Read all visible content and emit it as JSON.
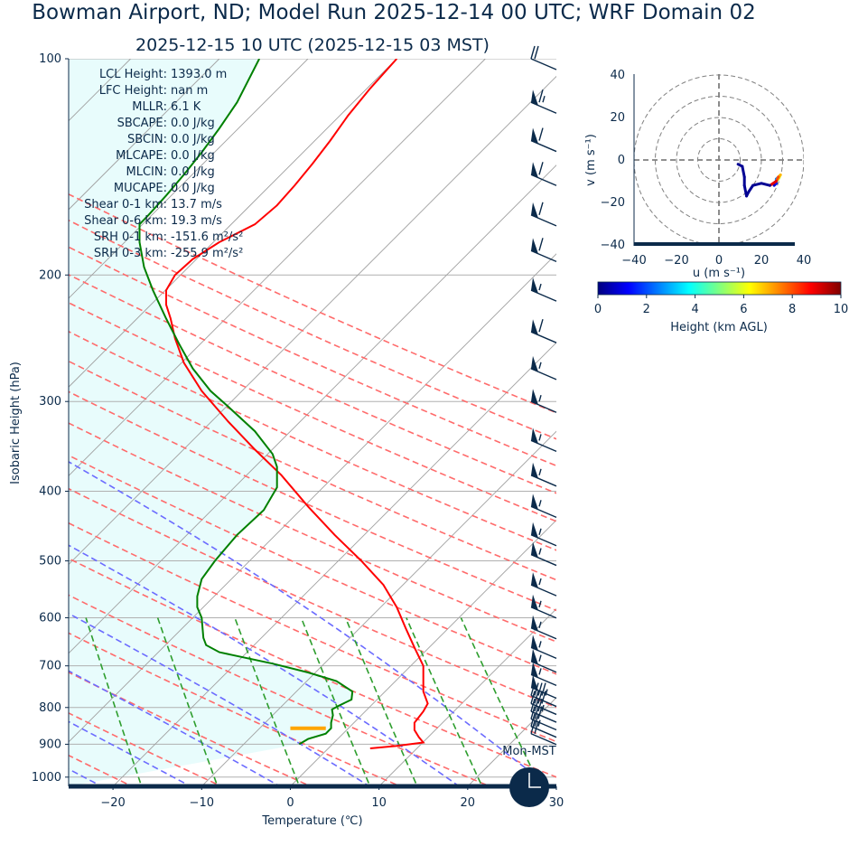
{
  "title": "Bowman Airport, ND; Model Run 2025-12-14 00 UTC; WRF Domain 02",
  "subtitle": "2025-12-15 10 UTC  (2025-12-15 03 MST)",
  "stats": [
    {
      "label": "LCL Height:",
      "value": "1393.0 m"
    },
    {
      "label": "LFC Height:",
      "value": "nan m"
    },
    {
      "label": "MLLR:",
      "value": "6.1 K"
    },
    {
      "label": "SBCAPE:",
      "value": "0.0 J/kg"
    },
    {
      "label": "SBCIN:",
      "value": "0.0 J/kg"
    },
    {
      "label": "MLCAPE:",
      "value": "0.0 J/kg"
    },
    {
      "label": "MLCIN:",
      "value": "0.0 J/kg"
    },
    {
      "label": "MUCAPE:",
      "value": "0.0 J/kg"
    },
    {
      "label": "Shear 0-1 km:",
      "value": "13.7 m/s"
    },
    {
      "label": "Shear 0-6 km:",
      "value": "19.3 m/s"
    },
    {
      "label": "SRH 0-1 km:",
      "value": "-151.6 m²/s²"
    },
    {
      "label": "SRH 0-3 km:",
      "value": "-255.9 m²/s²"
    }
  ],
  "clock_label": "Mon-MST",
  "colors": {
    "temperature": "#ff0000",
    "dewpoint": "#008000",
    "dry_adiabat": "#ff6b6b",
    "moist_adiabat": "#6b6bff",
    "mixing_ratio": "#2e9e2e",
    "isotherm": "#a0a0a0",
    "lcl_marker": "#ffa500",
    "cape_fill": "#e8fcfc",
    "barbs": "#0b2a4a",
    "navy": "#0b2a4a"
  },
  "chart_data": [
    {
      "type": "line",
      "title": "",
      "xlabel": "Temperature (℃)",
      "ylabel": "Isobaric Height (hPa)",
      "xlim": [
        -25,
        30
      ],
      "ylim": [
        1030,
        100
      ],
      "xticks": [
        -20,
        -10,
        0,
        10,
        20,
        30
      ],
      "yticks": [
        100,
        200,
        300,
        400,
        500,
        600,
        700,
        800,
        900,
        1000
      ],
      "skew_deg_per_log_p": 0,
      "series": [
        {
          "key": "temperature",
          "points": [
            [
              9.0,
              912
            ],
            [
              12.0,
              905
            ],
            [
              15.0,
              895
            ],
            [
              14.5,
              880
            ],
            [
              14.0,
              860
            ],
            [
              14.0,
              840
            ],
            [
              14.5,
              825
            ],
            [
              15.0,
              810
            ],
            [
              15.5,
              790
            ],
            [
              15.0,
              760
            ],
            [
              15.0,
              720
            ],
            [
              15.0,
              700
            ],
            [
              14.0,
              660
            ],
            [
              13.0,
              620
            ],
            [
              12.0,
              580
            ],
            [
              10.5,
              540
            ],
            [
              8.0,
              500
            ],
            [
              5.0,
              460
            ],
            [
              2.0,
              420
            ],
            [
              -1.0,
              380
            ],
            [
              -4.0,
              350
            ],
            [
              -7.0,
              320
            ],
            [
              -10.0,
              290
            ],
            [
              -12.0,
              265
            ],
            [
              -13.0,
              245
            ],
            [
              -13.5,
              230
            ],
            [
              -14.0,
              220
            ],
            [
              -14.0,
              210
            ],
            [
              -13.0,
              200
            ],
            [
              -11.0,
              190
            ],
            [
              -8.0,
              180
            ],
            [
              -4.0,
              170
            ],
            [
              -1.5,
              160
            ],
            [
              0.5,
              150
            ],
            [
              2.5,
              140
            ],
            [
              4.5,
              130
            ],
            [
              6.5,
              120
            ],
            [
              9.0,
              110
            ],
            [
              12.0,
              100
            ]
          ]
        },
        {
          "key": "dewpoint",
          "points": [
            [
              1.0,
              900
            ],
            [
              2.0,
              885
            ],
            [
              4.0,
              870
            ],
            [
              4.6,
              855
            ],
            [
              4.6,
              840
            ],
            [
              4.8,
              820
            ],
            [
              4.7,
              805
            ],
            [
              5.5,
              795
            ],
            [
              6.9,
              780
            ],
            [
              7.0,
              760
            ],
            [
              5.2,
              735
            ],
            [
              2.0,
              715
            ],
            [
              -2.0,
              695
            ],
            [
              -8.0,
              670
            ],
            [
              -9.5,
              655
            ],
            [
              -9.8,
              640
            ],
            [
              -10.0,
              600
            ],
            [
              -10.5,
              580
            ],
            [
              -10.5,
              560
            ],
            [
              -10.0,
              530
            ],
            [
              -8.5,
              500
            ],
            [
              -6.0,
              460
            ],
            [
              -3.0,
              425
            ],
            [
              -1.5,
              395
            ],
            [
              -1.5,
              370
            ],
            [
              -2.0,
              355
            ],
            [
              -4.0,
              330
            ],
            [
              -7.0,
              305
            ],
            [
              -9.0,
              290
            ],
            [
              -11.0,
              270
            ],
            [
              -12.5,
              250
            ],
            [
              -14.0,
              230
            ],
            [
              -15.5,
              210
            ],
            [
              -16.5,
              195
            ],
            [
              -17.0,
              180
            ],
            [
              -17.0,
              170
            ],
            [
              -16.0,
              165
            ],
            [
              -14.0,
              155
            ],
            [
              -12.0,
              145
            ],
            [
              -10.0,
              135
            ],
            [
              -8.0,
              125
            ],
            [
              -6.0,
              115
            ],
            [
              -3.5,
              100
            ]
          ]
        }
      ],
      "lcl": {
        "p": 855,
        "t_min": 0.0,
        "t_max": 4.0
      },
      "wind_barbs": [
        {
          "p": 100,
          "speed_kt": 20
        },
        {
          "p": 115,
          "speed_kt": 65
        },
        {
          "p": 130,
          "speed_kt": 60
        },
        {
          "p": 145,
          "speed_kt": 60
        },
        {
          "p": 165,
          "speed_kt": 60
        },
        {
          "p": 185,
          "speed_kt": 60
        },
        {
          "p": 210,
          "speed_kt": 55
        },
        {
          "p": 240,
          "speed_kt": 60
        },
        {
          "p": 270,
          "speed_kt": 55
        },
        {
          "p": 300,
          "speed_kt": 55
        },
        {
          "p": 340,
          "speed_kt": 55
        },
        {
          "p": 380,
          "speed_kt": 55
        },
        {
          "p": 420,
          "speed_kt": 55
        },
        {
          "p": 460,
          "speed_kt": 55
        },
        {
          "p": 490,
          "speed_kt": 55
        },
        {
          "p": 540,
          "speed_kt": 55
        },
        {
          "p": 580,
          "speed_kt": 55
        },
        {
          "p": 620,
          "speed_kt": 55
        },
        {
          "p": 660,
          "speed_kt": 55
        },
        {
          "p": 690,
          "speed_kt": 55
        },
        {
          "p": 720,
          "speed_kt": 55
        },
        {
          "p": 750,
          "speed_kt": 50
        },
        {
          "p": 770,
          "speed_kt": 45
        },
        {
          "p": 790,
          "speed_kt": 40
        },
        {
          "p": 810,
          "speed_kt": 35
        },
        {
          "p": 830,
          "speed_kt": 30
        },
        {
          "p": 850,
          "speed_kt": 25
        },
        {
          "p": 870,
          "speed_kt": 20
        }
      ]
    },
    {
      "type": "line",
      "title": "",
      "xlabel": "u (m s⁻¹)",
      "ylabel": "v (m s⁻¹)",
      "xlim": [
        -40,
        40
      ],
      "ylim": [
        -40,
        40
      ],
      "xticks": [
        -40,
        -20,
        0,
        20,
        40
      ],
      "yticks": [
        -40,
        -20,
        0,
        20,
        40
      ],
      "range_rings": [
        10,
        20,
        30,
        40
      ],
      "series": [
        {
          "key": "hodograph",
          "points": [
            [
              26,
              -12,
              0.3
            ],
            [
              27,
              -11,
              0.8
            ],
            [
              27,
              -9,
              1.5
            ],
            [
              28,
              -8,
              2.5
            ],
            [
              27,
              -10,
              3.5
            ],
            [
              28,
              -9,
              5.0
            ],
            [
              29,
              -7,
              6.0
            ],
            [
              28,
              -8,
              7.0
            ],
            [
              27,
              -10,
              8.0
            ],
            [
              24,
              -12,
              9.0
            ],
            [
              20,
              -11,
              0.2
            ],
            [
              16,
              -12,
              0.2
            ],
            [
              14,
              -15,
              0.2
            ],
            [
              13,
              -17,
              0.2
            ],
            [
              12,
              -12,
              0.2
            ],
            [
              12,
              -8,
              0.2
            ],
            [
              11,
              -3,
              0.2
            ],
            [
              9,
              -2,
              0.2
            ]
          ]
        }
      ],
      "colorbar": {
        "label": "Height (km AGL)",
        "min": 0,
        "max": 10,
        "ticks": [
          0,
          2,
          4,
          6,
          8,
          10
        ]
      }
    }
  ]
}
